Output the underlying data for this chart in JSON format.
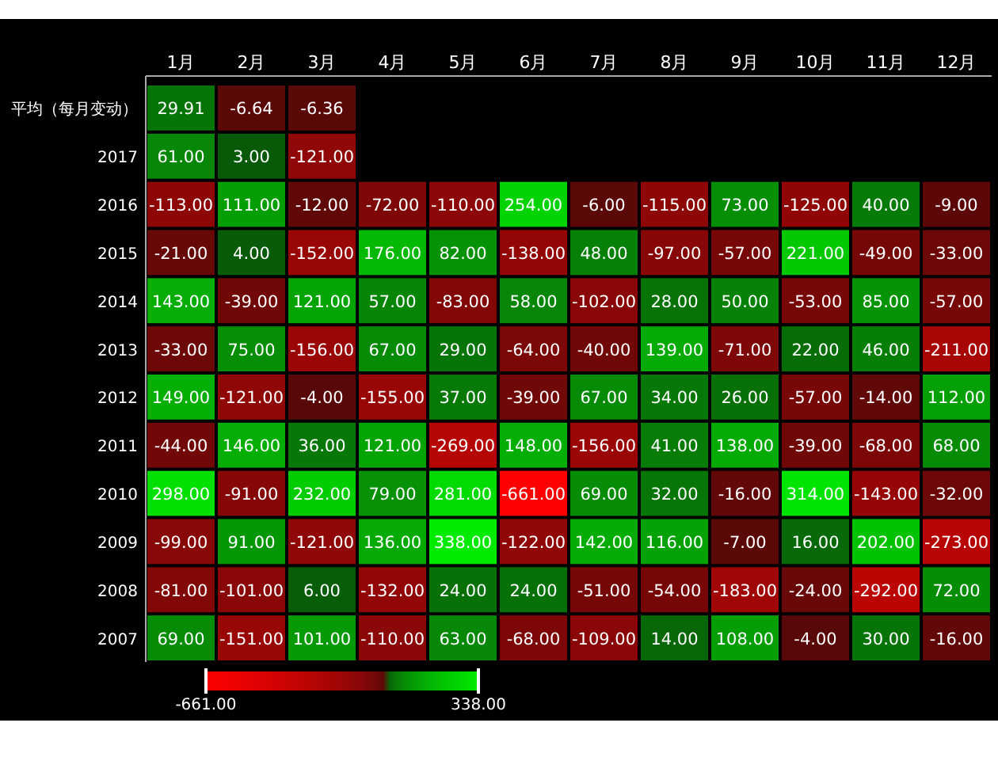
{
  "chart_data": {
    "type": "heatmap",
    "categories": [
      "1月",
      "2月",
      "3月",
      "4月",
      "5月",
      "6月",
      "7月",
      "8月",
      "9月",
      "10月",
      "11月",
      "12月"
    ],
    "y_categories": [
      "平均（每月变动）",
      "2017",
      "2016",
      "2015",
      "2014",
      "2013",
      "2012",
      "2011",
      "2010",
      "2009",
      "2008",
      "2007"
    ],
    "cells": [
      [
        29.91,
        -6.64,
        -6.36,
        null,
        null,
        null,
        null,
        null,
        null,
        null,
        null,
        null
      ],
      [
        61,
        3,
        -121,
        null,
        null,
        null,
        null,
        null,
        null,
        null,
        null,
        null
      ],
      [
        -113,
        111,
        -12,
        -72,
        -110,
        254,
        -6,
        -115,
        73,
        -125,
        40,
        -9
      ],
      [
        -21,
        4,
        -152,
        176,
        82,
        -138,
        48,
        -97,
        -57,
        221,
        -49,
        -33
      ],
      [
        143,
        -39,
        121,
        57,
        -83,
        58,
        -102,
        28,
        50,
        -53,
        85,
        -57
      ],
      [
        -33,
        75,
        -156,
        67,
        29,
        -64,
        -40,
        139,
        -71,
        22,
        46,
        -211
      ],
      [
        149,
        -121,
        -4,
        -155,
        37,
        -39,
        67,
        34,
        26,
        -57,
        -14,
        112
      ],
      [
        -44,
        146,
        36,
        121,
        -269,
        148,
        -156,
        41,
        138,
        -39,
        -68,
        68
      ],
      [
        298,
        -91,
        232,
        79,
        281,
        -661,
        69,
        32,
        -16,
        314,
        -143,
        -32
      ],
      [
        -99,
        91,
        -121,
        136,
        338,
        -122,
        142,
        116,
        -7,
        16,
        202,
        -273
      ],
      [
        -81,
        -101,
        6,
        -132,
        24,
        24,
        -51,
        -54,
        -183,
        -24,
        -292,
        72
      ],
      [
        69,
        -151,
        101,
        -110,
        63,
        -68,
        -109,
        14,
        108,
        -4,
        30,
        -16
      ]
    ],
    "cell_labels": [
      [
        "29.91",
        "-6.64",
        "-6.36",
        null,
        null,
        null,
        null,
        null,
        null,
        null,
        null,
        null
      ],
      [
        "61.00",
        "3.00",
        "-121.00",
        null,
        null,
        null,
        null,
        null,
        null,
        null,
        null,
        null
      ],
      [
        "-113.00",
        "111.00",
        "-12.00",
        "-72.00",
        "-110.00",
        "254.00",
        "-6.00",
        "-115.00",
        "73.00",
        "-125.00",
        "40.00",
        "-9.00"
      ],
      [
        "-21.00",
        "4.00",
        "-152.00",
        "176.00",
        "82.00",
        "-138.00",
        "48.00",
        "-97.00",
        "-57.00",
        "221.00",
        "-49.00",
        "-33.00"
      ],
      [
        "143.00",
        "-39.00",
        "121.00",
        "57.00",
        "-83.00",
        "58.00",
        "-102.00",
        "28.00",
        "50.00",
        "-53.00",
        "85.00",
        "-57.00"
      ],
      [
        "-33.00",
        "75.00",
        "-156.00",
        "67.00",
        "29.00",
        "-64.00",
        "-40.00",
        "139.00",
        "-71.00",
        "22.00",
        "46.00",
        "-211.00"
      ],
      [
        "149.00",
        "-121.00",
        "-4.00",
        "-155.00",
        "37.00",
        "-39.00",
        "67.00",
        "34.00",
        "26.00",
        "-57.00",
        "-14.00",
        "112.00"
      ],
      [
        "-44.00",
        "146.00",
        "36.00",
        "121.00",
        "-269.00",
        "148.00",
        "-156.00",
        "41.00",
        "138.00",
        "-39.00",
        "-68.00",
        "68.00"
      ],
      [
        "298.00",
        "-91.00",
        "232.00",
        "79.00",
        "281.00",
        "-661.00",
        "69.00",
        "32.00",
        "-16.00",
        "314.00",
        "-143.00",
        "-32.00"
      ],
      [
        "-99.00",
        "91.00",
        "-121.00",
        "136.00",
        "338.00",
        "-122.00",
        "142.00",
        "116.00",
        "-7.00",
        "16.00",
        "202.00",
        "-273.00"
      ],
      [
        "-81.00",
        "-101.00",
        "6.00",
        "-132.00",
        "24.00",
        "24.00",
        "-51.00",
        "-54.00",
        "-183.00",
        "-24.00",
        "-292.00",
        "72.00"
      ],
      [
        "69.00",
        "-151.00",
        "101.00",
        "-110.00",
        "63.00",
        "-68.00",
        "-109.00",
        "14.00",
        "108.00",
        "-4.00",
        "30.00",
        "-16.00"
      ]
    ],
    "clim": [
      -661,
      338
    ],
    "cticks": [
      {
        "value": -661,
        "label": "-661.00"
      },
      {
        "value": 338,
        "label": "338.00"
      }
    ]
  }
}
